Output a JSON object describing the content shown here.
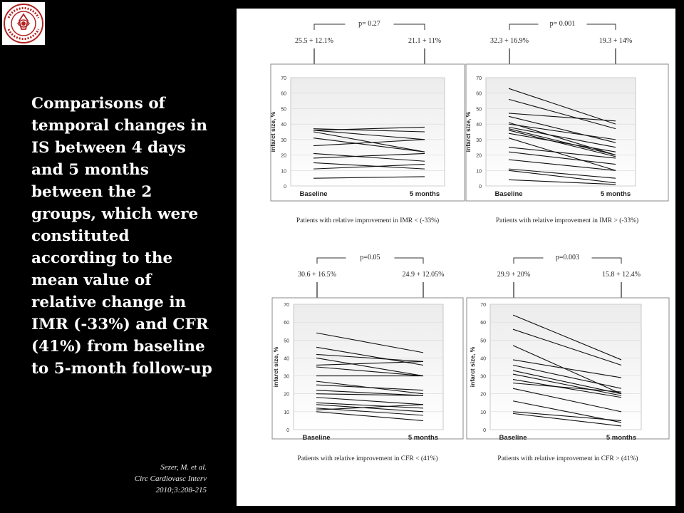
{
  "slide": {
    "description_lines": [
      "Comparisons of",
      "temporal changes in",
      "IS between 4 days",
      "and 5 months",
      "between the 2",
      "groups, which were",
      "constituted",
      "according to the",
      "mean value of",
      "relative change in",
      "IMR (-33%) and CFR",
      "(41%) from baseline",
      "to 5-month follow-up"
    ],
    "citation_lines": [
      "Sezer, M. et al.",
      "Circ Cardiovasc Interv",
      "2010;3:208-215"
    ],
    "logo_text": "İSTANBUL ÜNİVERSİTESİ İSTANBUL TIP FAKÜLTESİ"
  },
  "chart_data": [
    {
      "type": "line",
      "ylabel": "infarct size, %",
      "categories": [
        "Baseline",
        "5 months"
      ],
      "ylim": [
        0,
        70
      ],
      "yticks": [
        0,
        10,
        20,
        30,
        40,
        50,
        60,
        70
      ],
      "p_value": "p= 0.27",
      "baseline_annotation": "25.5 + 12.1%",
      "followup_annotation": "21.1 + 11%",
      "footer": "Patients with relative improvement in IMR < (-33%)",
      "pairs": [
        [
          37,
          35
        ],
        [
          36,
          30
        ],
        [
          36,
          38
        ],
        [
          35,
          22
        ],
        [
          31,
          22
        ],
        [
          26,
          30
        ],
        [
          21,
          16
        ],
        [
          18,
          21
        ],
        [
          15,
          11
        ],
        [
          11,
          14
        ],
        [
          5,
          6
        ]
      ]
    },
    {
      "type": "line",
      "ylabel": "infarct size, %",
      "categories": [
        "Baseline",
        "5 months"
      ],
      "ylim": [
        0,
        70
      ],
      "yticks": [
        0,
        10,
        20,
        30,
        40,
        50,
        60,
        70
      ],
      "p_value": "p= 0.001",
      "baseline_annotation": "32.3 + 16.9%",
      "followup_annotation": "19.3 + 14%",
      "footer": "Patients with relative improvement in IMR > (-33%)",
      "pairs": [
        [
          63,
          40
        ],
        [
          56,
          37
        ],
        [
          47,
          42
        ],
        [
          45,
          28
        ],
        [
          41,
          20
        ],
        [
          40,
          30
        ],
        [
          38,
          25
        ],
        [
          37,
          20
        ],
        [
          36,
          19
        ],
        [
          34,
          22
        ],
        [
          31,
          10
        ],
        [
          25,
          18
        ],
        [
          22,
          14
        ],
        [
          17,
          10
        ],
        [
          11,
          5
        ],
        [
          10,
          2
        ],
        [
          4,
          1
        ]
      ]
    },
    {
      "type": "line",
      "ylabel": "infarct size, %",
      "categories": [
        "Baseline",
        "5 months"
      ],
      "ylim": [
        0,
        70
      ],
      "yticks": [
        0,
        10,
        20,
        30,
        40,
        50,
        60,
        70
      ],
      "p_value": "p=0.05",
      "baseline_annotation": "30.6 + 16.5%",
      "followup_annotation": "24.9 + 12.05%",
      "footer": "Patients with relative improvement in CFR < (41%)",
      "pairs": [
        [
          54,
          43
        ],
        [
          46,
          36
        ],
        [
          42,
          38
        ],
        [
          40,
          30
        ],
        [
          36,
          38
        ],
        [
          35,
          30
        ],
        [
          30,
          30
        ],
        [
          27,
          20
        ],
        [
          25,
          22
        ],
        [
          22,
          19
        ],
        [
          20,
          19
        ],
        [
          18,
          14
        ],
        [
          15,
          12
        ],
        [
          14,
          10
        ],
        [
          12,
          8
        ],
        [
          11,
          14
        ],
        [
          10,
          5
        ]
      ]
    },
    {
      "type": "line",
      "ylabel": "infarct size, %",
      "categories": [
        "Baseline",
        "5 months"
      ],
      "ylim": [
        0,
        70
      ],
      "yticks": [
        0,
        10,
        20,
        30,
        40,
        50,
        60,
        70
      ],
      "p_value": "p=0.003",
      "baseline_annotation": "29.9 + 20%",
      "followup_annotation": "15.8 + 12.4%",
      "footer": "Patients with relative improvement in CFR > (41%)",
      "pairs": [
        [
          64,
          39
        ],
        [
          56,
          36
        ],
        [
          47,
          20
        ],
        [
          39,
          29
        ],
        [
          36,
          23
        ],
        [
          33,
          20
        ],
        [
          31,
          19
        ],
        [
          28,
          18
        ],
        [
          26,
          21
        ],
        [
          23,
          10
        ],
        [
          16,
          4
        ],
        [
          10,
          5
        ],
        [
          9,
          2
        ]
      ]
    }
  ]
}
